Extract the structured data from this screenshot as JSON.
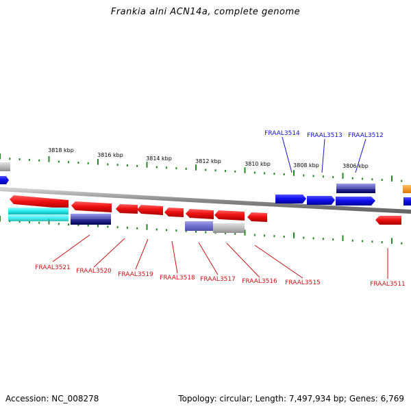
{
  "title": "Frankia alni ACN14a, complete genome",
  "footer": {
    "accession": "Accession: NC_008278",
    "summary": "Topology: circular; Length: 7,497,934 bp; Genes: 6,769"
  },
  "scale": {
    "unit": "kbp",
    "labels": [
      "3818 kbp",
      "3816 kbp",
      "3814 kbp",
      "3812 kbp",
      "3810 kbp",
      "3808 kbp",
      "3806 kbp"
    ]
  },
  "colors": {
    "forward_gene": "#1010ee",
    "reverse_gene": "#ee1111",
    "forward_label": "#1010cc",
    "reverse_label": "#cc1111",
    "tick": "#228822",
    "backbone": "#888888"
  },
  "genes_forward": [
    {
      "label": "FRAAL3514"
    },
    {
      "label": "FRAAL3513"
    },
    {
      "label": "FRAAL3512"
    }
  ],
  "genes_reverse": [
    {
      "label": "FRAAL3521"
    },
    {
      "label": "FRAAL3520"
    },
    {
      "label": "FRAAL3519"
    },
    {
      "label": "FRAAL3518"
    },
    {
      "label": "FRAAL3517"
    },
    {
      "label": "FRAAL3516"
    },
    {
      "label": "FRAAL3515"
    },
    {
      "label": "FRAAL3511"
    }
  ]
}
